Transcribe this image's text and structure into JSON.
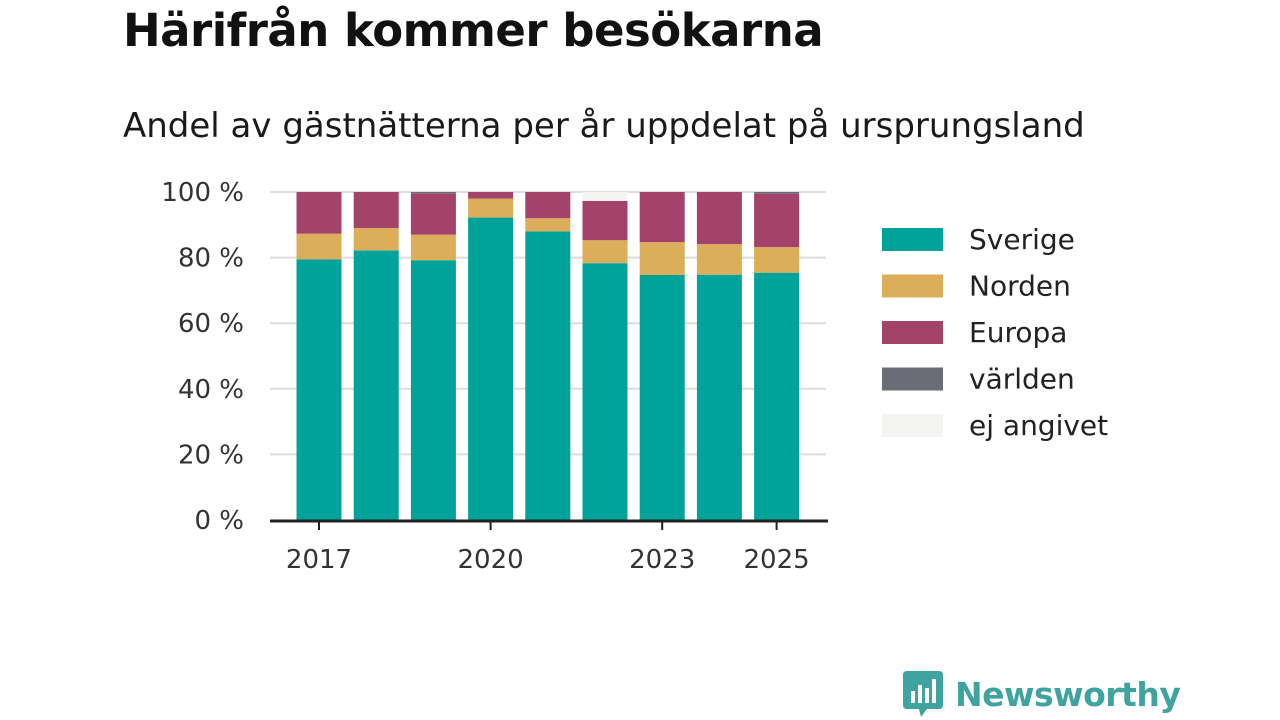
{
  "title": "Härifrån kommer besökarna",
  "subtitle": "Andel av gästnätterna per år uppdelat på ursprungsland",
  "brand": {
    "name": "Newsworthy",
    "color": "#3fa39f"
  },
  "chart_data": {
    "type": "bar",
    "stacked": true,
    "categories": [
      "2017",
      "2018",
      "2019",
      "2020",
      "2021",
      "2022",
      "2023",
      "2024",
      "2025"
    ],
    "x_tick_labels": [
      "2017",
      "2020",
      "2023",
      "2025"
    ],
    "series": [
      {
        "name": "Sverige",
        "color": "#00a39a",
        "values": [
          79.5,
          82.2,
          79.2,
          92.2,
          88.0,
          78.3,
          74.7,
          74.8,
          75.4
        ]
      },
      {
        "name": "Norden",
        "color": "#dcae59",
        "values": [
          7.8,
          6.8,
          7.8,
          5.8,
          4.0,
          7.0,
          10.0,
          9.3,
          7.8
        ]
      },
      {
        "name": "Europa",
        "color": "#a3426a",
        "values": [
          12.7,
          11.0,
          12.6,
          2.0,
          8.0,
          12.0,
          15.3,
          15.9,
          16.3
        ]
      },
      {
        "name": "världen",
        "color": "#6b6d76",
        "values": [
          0.0,
          0.0,
          0.4,
          0.0,
          0.0,
          0.0,
          0.0,
          0.0,
          0.5
        ]
      },
      {
        "name": "ej angivet",
        "color": "#f4f4f2",
        "values": [
          0.0,
          0.0,
          0.0,
          0.0,
          0.0,
          2.7,
          0.0,
          0.0,
          0.0
        ]
      }
    ],
    "y_ticks": [
      "0 %",
      "20 %",
      "40 %",
      "60 %",
      "80 %",
      "100 %"
    ],
    "ylim": [
      0,
      100
    ],
    "xlabel": "",
    "ylabel": "",
    "grid": true,
    "legend": "right"
  }
}
